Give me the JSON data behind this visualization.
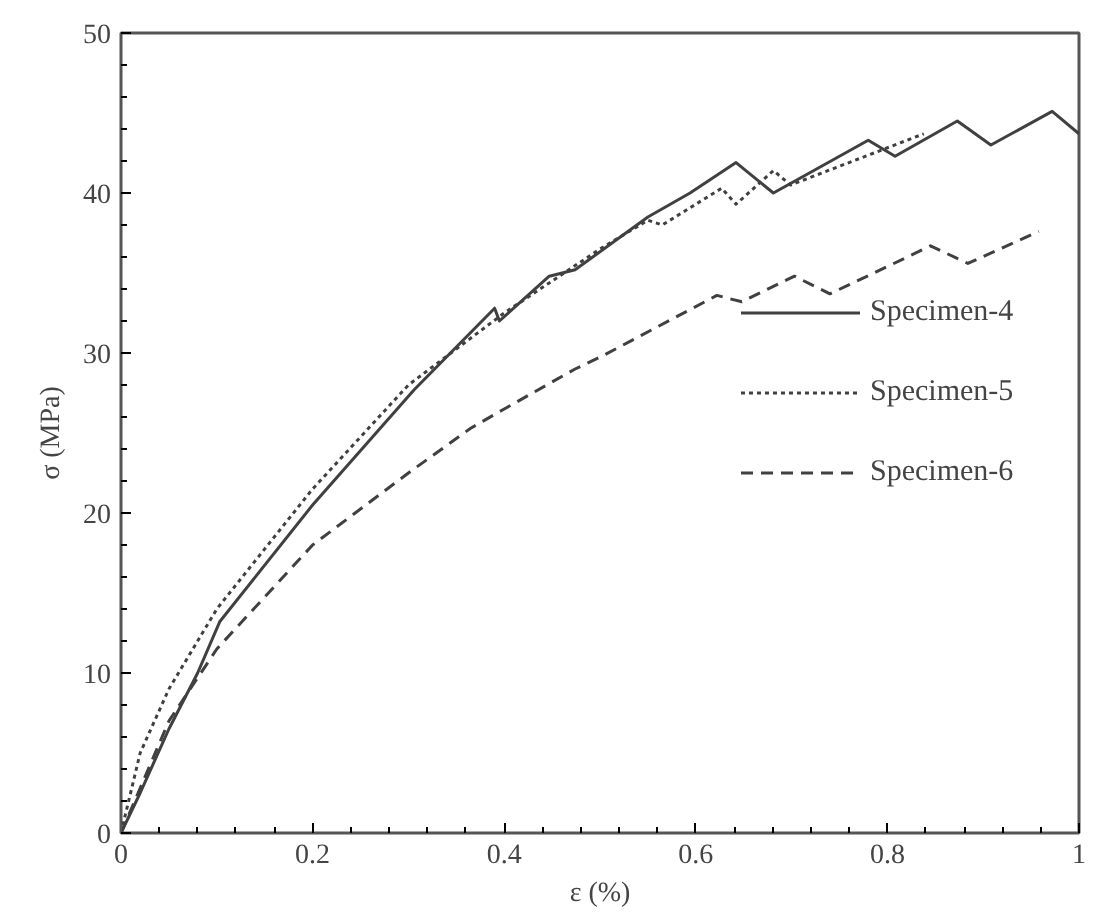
{
  "chart_data": {
    "type": "line",
    "xlabel": "ε (%)",
    "ylabel": "σ (MPa)",
    "xlim": [
      0,
      1
    ],
    "ylim": [
      0,
      50
    ],
    "xticks": [
      0,
      0.2,
      0.4,
      0.6,
      0.8,
      1
    ],
    "yticks": [
      0,
      10,
      20,
      30,
      40,
      50
    ],
    "grid": false,
    "legend": "right",
    "marker": "none",
    "series": [
      {
        "name": "Specimen-4",
        "color": "#404040",
        "line_style": "solid",
        "x": [
          0,
          0.02,
          0.05,
          0.08,
          0.103,
          0.2,
          0.306,
          0.39,
          0.395,
          0.447,
          0.474,
          0.55,
          0.594,
          0.642,
          0.681,
          0.78,
          0.808,
          0.873,
          0.908,
          0.972,
          1.0
        ],
        "values": [
          0,
          2.5,
          6.5,
          10,
          13.2,
          20.5,
          27.7,
          32.8,
          32.0,
          34.8,
          35.2,
          38.5,
          40.0,
          41.9,
          40.0,
          43.3,
          42.3,
          44.5,
          43.0,
          45.1,
          43.7
        ]
      },
      {
        "name": "Specimen-5",
        "color": "#404040",
        "line_style": "dotted",
        "x": [
          0,
          0.02,
          0.05,
          0.1,
          0.2,
          0.3,
          0.4,
          0.5,
          0.55,
          0.565,
          0.627,
          0.642,
          0.681,
          0.699,
          0.838
        ],
        "values": [
          0,
          5,
          9,
          14,
          21.5,
          28,
          32.5,
          36.5,
          38.3,
          38.0,
          40.3,
          39.3,
          41.4,
          40.5,
          43.7
        ]
      },
      {
        "name": "Specimen-6",
        "color": "#404040",
        "line_style": "dashed",
        "x": [
          0,
          0.05,
          0.1,
          0.2,
          0.3,
          0.365,
          0.4,
          0.474,
          0.502,
          0.622,
          0.648,
          0.703,
          0.74,
          0.786,
          0.845,
          0.884,
          0.958
        ],
        "values": [
          0,
          7,
          11.5,
          18,
          22.5,
          25.3,
          26.5,
          29.0,
          29.8,
          33.6,
          33.2,
          34.8,
          33.7,
          35.0,
          36.7,
          35.6,
          37.6
        ]
      }
    ]
  }
}
